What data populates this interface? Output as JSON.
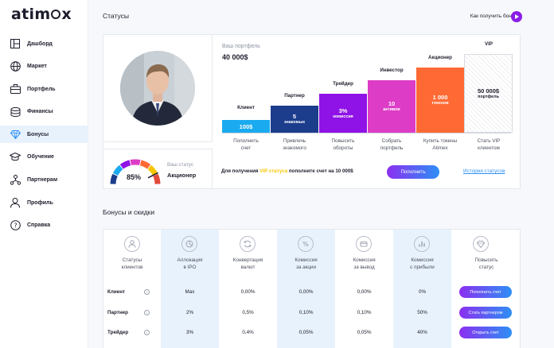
{
  "app": {
    "logo": "atimex"
  },
  "sidebar": {
    "items": [
      {
        "label": "Дашборд",
        "icon": "dashboard-icon"
      },
      {
        "label": "Маркет",
        "icon": "globe-icon"
      },
      {
        "label": "Портфель",
        "icon": "portfolio-icon"
      },
      {
        "label": "Финансы",
        "icon": "coins-icon"
      },
      {
        "label": "Бонусы",
        "icon": "diamond-icon",
        "active": true
      },
      {
        "label": "Обучение",
        "icon": "graduation-icon"
      },
      {
        "label": "Партнерам",
        "icon": "network-icon"
      },
      {
        "label": "Профиль",
        "icon": "user-icon"
      },
      {
        "label": "Справка",
        "icon": "help-icon"
      }
    ]
  },
  "header": {
    "title": "Статусы",
    "how_link": "Как получить бонусы"
  },
  "status_card": {
    "portfolio_label": "Ваш портфель",
    "portfolio_value": "40 000$",
    "gauge_percent": "85%",
    "gauge_fraction": 0.85,
    "your_status_label": "Ваш статус",
    "your_status_value": "Акционер",
    "levels": [
      {
        "title": "Клиент",
        "value": "100$",
        "sub": "",
        "caption1": "Пополнить",
        "caption2": "счет",
        "color": "#1aaaf0"
      },
      {
        "title": "Партнер",
        "value": "5",
        "sub": "знакомых",
        "caption1": "Привлечь",
        "caption2": "знакомого",
        "color": "#1c3c8c"
      },
      {
        "title": "Трейдер",
        "value": "3%",
        "sub": "комиссия",
        "caption1": "Повысить",
        "caption2": "обороты",
        "color": "#8f12e6"
      },
      {
        "title": "Инвестор",
        "value": "10",
        "sub": "активов",
        "caption1": "Собрать",
        "caption2": "портфель",
        "color": "#dd3cc6"
      },
      {
        "title": "Акционер",
        "value": "1 000",
        "sub": "токенов",
        "caption1": "Купить токены",
        "caption2": "Atimex",
        "color": "#ff6a34"
      },
      {
        "title": "VIP",
        "value": "50 000$",
        "sub": "портфель",
        "caption1": "Стать VIP",
        "caption2": "клиентом",
        "color": "#f3f3f5"
      }
    ],
    "footer_prefix": "Для получения",
    "footer_highlight": "VIP статуса",
    "footer_suffix": "пополните счет на 10 000$",
    "topup_button": "Пополнить",
    "history_link": "История статусов"
  },
  "bonuses": {
    "title": "Бонусы и скидки",
    "columns": [
      {
        "label1": "Статусы",
        "label2": "клиентов",
        "icon": "user-circle-icon"
      },
      {
        "label1": "Аллокация",
        "label2": "в IPO",
        "icon": "pie-chart-icon"
      },
      {
        "label1": "Конвертация",
        "label2": "валют",
        "icon": "refresh-icon"
      },
      {
        "label1": "Комиссия",
        "label2": "за акции",
        "icon": "percent-icon"
      },
      {
        "label1": "Комиссия",
        "label2": "за вывод",
        "icon": "card-icon"
      },
      {
        "label1": "Комиссия",
        "label2": "с прибыли",
        "icon": "bar-chart-icon"
      },
      {
        "label1": "Повысить",
        "label2": "статус",
        "icon": "diamond-icon"
      }
    ],
    "rows": [
      {
        "status": "Клиент",
        "ipo": "Max",
        "fx": "0,00%",
        "stocks": "0,00%",
        "withdraw": "0,00%",
        "profit": "0%",
        "action": "Пополнить счет"
      },
      {
        "status": "Партнер",
        "ipo": "2%",
        "fx": "0,5%",
        "stocks": "0,10%",
        "withdraw": "0,10%",
        "profit": "50%",
        "action": "Стать партнером"
      },
      {
        "status": "Трейдер",
        "ipo": "3%",
        "fx": "0,4%",
        "stocks": "0,05%",
        "withdraw": "0,05%",
        "profit": "40%",
        "action": "Открыть счет"
      }
    ]
  }
}
